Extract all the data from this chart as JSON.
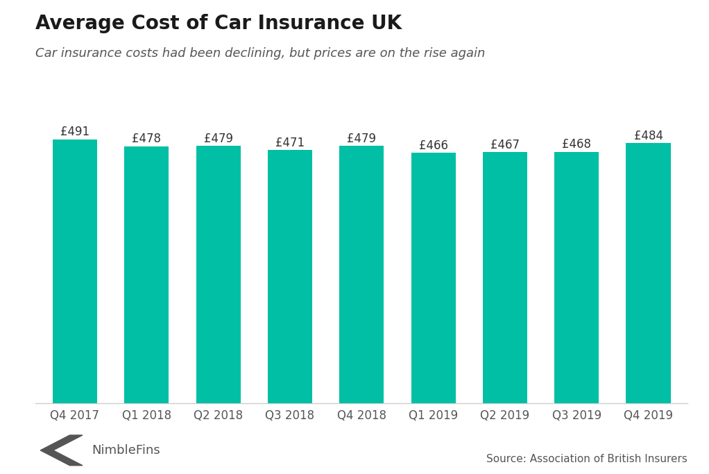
{
  "title": "Average Cost of Car Insurance UK",
  "subtitle": "Car insurance costs had been declining, but prices are on the rise again",
  "categories": [
    "Q4 2017",
    "Q1 2018",
    "Q2 2018",
    "Q3 2018",
    "Q4 2018",
    "Q1 2019",
    "Q2 2019",
    "Q3 2019",
    "Q4 2019"
  ],
  "values": [
    491,
    478,
    479,
    471,
    479,
    466,
    467,
    468,
    484
  ],
  "bar_color": "#00BFA5",
  "background_color": "#ffffff",
  "ylim_min": 0,
  "ylim_max": 530,
  "source_text": "Source: Association of British Insurers",
  "logo_text": "NimbleFins",
  "title_fontsize": 20,
  "subtitle_fontsize": 13,
  "label_fontsize": 12,
  "tick_fontsize": 12,
  "source_fontsize": 11,
  "text_color": "#333333",
  "tick_color": "#555555"
}
